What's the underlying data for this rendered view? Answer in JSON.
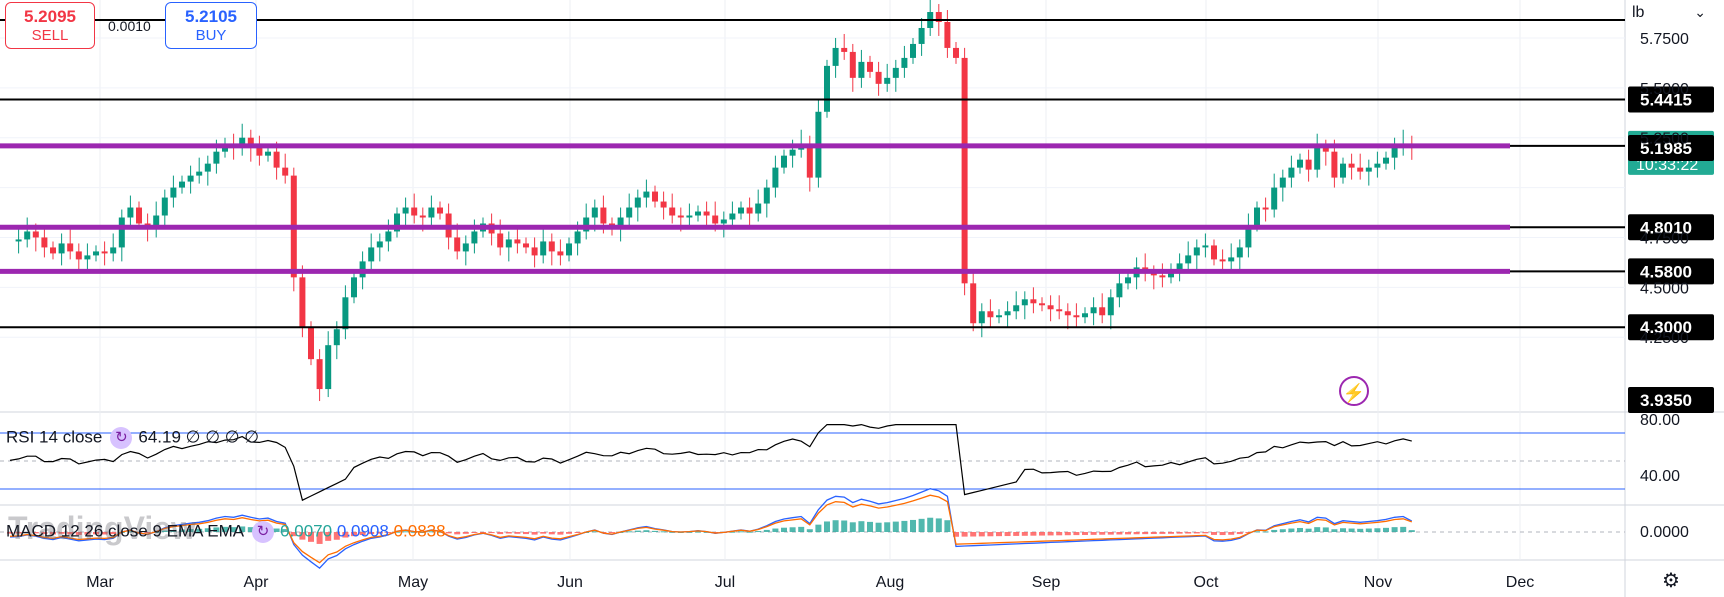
{
  "trade": {
    "sell_price": "5.2095",
    "sell_label": "SELL",
    "buy_price": "5.2105",
    "buy_label": "BUY",
    "spread": "0.0010"
  },
  "unit_select": "lb",
  "indicators": {
    "rsi_label": "RSI 14 close",
    "rsi_value": "64.19",
    "rsi_extra": "∅ ∅ ∅ ∅",
    "macd_label": "MACD 12 26 close 9 EMA EMA",
    "macd_hist": "0.0070",
    "macd_line": "0.0908",
    "macd_signal": "0.0838"
  },
  "watermark": "TradingView",
  "colors": {
    "up": "#089981",
    "down": "#f23645",
    "support_purple": "#9c27b0",
    "level_black": "#000000",
    "current_price_bg": "#22ab94",
    "rsi_band": "#2962ff",
    "macd_line": "#2962ff",
    "macd_signal": "#ff6d00",
    "hist_pos": "#26a69a",
    "hist_neg": "#ff5252"
  },
  "chart_data": {
    "type": "candlestick",
    "x_axis_months": [
      "Mar",
      "Apr",
      "May",
      "Jun",
      "Jul",
      "Aug",
      "Sep",
      "Oct",
      "Nov",
      "Dec"
    ],
    "price_axis_ticks": [
      "5.7500",
      "5.5000",
      "5.2500",
      "4.7500",
      "4.5000",
      "4.2500"
    ],
    "price_range": [
      3.9,
      5.95
    ],
    "horizontal_levels": [
      {
        "label": "5.4415",
        "price": 5.4415,
        "style": "black"
      },
      {
        "label": "5.2090",
        "price": 5.209,
        "style": "purple",
        "current": true,
        "countdown": "10:33:22"
      },
      {
        "label": "5.1985",
        "price": 5.1985,
        "style": "black-label"
      },
      {
        "label": "4.8010",
        "price": 4.801,
        "style": "purple"
      },
      {
        "label": "4.5800",
        "price": 4.58,
        "style": "purple"
      },
      {
        "label": "4.3000",
        "price": 4.3,
        "style": "black"
      },
      {
        "label": "3.9350",
        "price": 3.935,
        "style": "black-label"
      }
    ],
    "top_level_price": 5.84,
    "close_series": [
      4.73,
      4.74,
      4.78,
      4.75,
      4.7,
      4.67,
      4.72,
      4.68,
      4.64,
      4.66,
      4.68,
      4.67,
      4.7,
      4.85,
      4.9,
      4.82,
      4.79,
      4.86,
      4.95,
      5.0,
      5.03,
      5.06,
      5.08,
      5.12,
      5.18,
      5.22,
      5.2,
      5.25,
      5.2,
      5.16,
      5.18,
      5.1,
      5.06,
      4.55,
      4.3,
      4.14,
      3.99,
      4.21,
      4.29,
      4.45,
      4.55,
      4.63,
      4.7,
      4.73,
      4.78,
      4.87,
      4.9,
      4.86,
      4.85,
      4.9,
      4.87,
      4.75,
      4.68,
      4.72,
      4.78,
      4.82,
      4.77,
      4.7,
      4.74,
      4.72,
      4.7,
      4.66,
      4.73,
      4.68,
      4.66,
      4.72,
      4.78,
      4.85,
      4.9,
      4.82,
      4.79,
      4.85,
      4.9,
      4.95,
      4.98,
      4.93,
      4.9,
      4.86,
      4.85,
      4.86,
      4.88,
      4.86,
      4.82,
      4.84,
      4.87,
      4.9,
      4.87,
      4.92,
      5.0,
      5.1,
      5.16,
      5.19,
      5.22,
      5.05,
      5.38,
      5.61,
      5.7,
      5.68,
      5.55,
      5.63,
      5.58,
      5.52,
      5.55,
      5.6,
      5.65,
      5.72,
      5.8,
      5.88,
      5.83,
      5.7,
      5.65,
      4.52,
      4.32,
      4.38,
      4.35,
      4.36,
      4.38,
      4.41,
      4.44,
      4.42,
      4.41,
      4.39,
      4.38,
      4.36,
      4.35,
      4.37,
      4.4,
      4.36,
      4.45,
      4.52,
      4.55,
      4.6,
      4.57,
      4.56,
      4.55,
      4.59,
      4.62,
      4.66,
      4.7,
      4.71,
      4.64,
      4.63,
      4.65,
      4.7,
      4.81,
      4.9,
      4.89,
      5.0,
      5.05,
      5.1,
      5.14,
      5.09,
      5.2,
      5.18,
      5.05,
      5.12,
      5.1,
      5.08,
      5.1,
      5.12,
      5.15,
      5.2,
      5.22,
      5.209
    ],
    "rsi": {
      "upper": 70,
      "lower": 30,
      "mid": 50,
      "axis_ticks": [
        "80.00",
        "40.00"
      ],
      "last": 64.19
    },
    "macd": {
      "axis_ticks": [
        "0.0000"
      ],
      "last_line": 0.0908,
      "last_signal": 0.0838,
      "last_hist": 0.007
    }
  }
}
